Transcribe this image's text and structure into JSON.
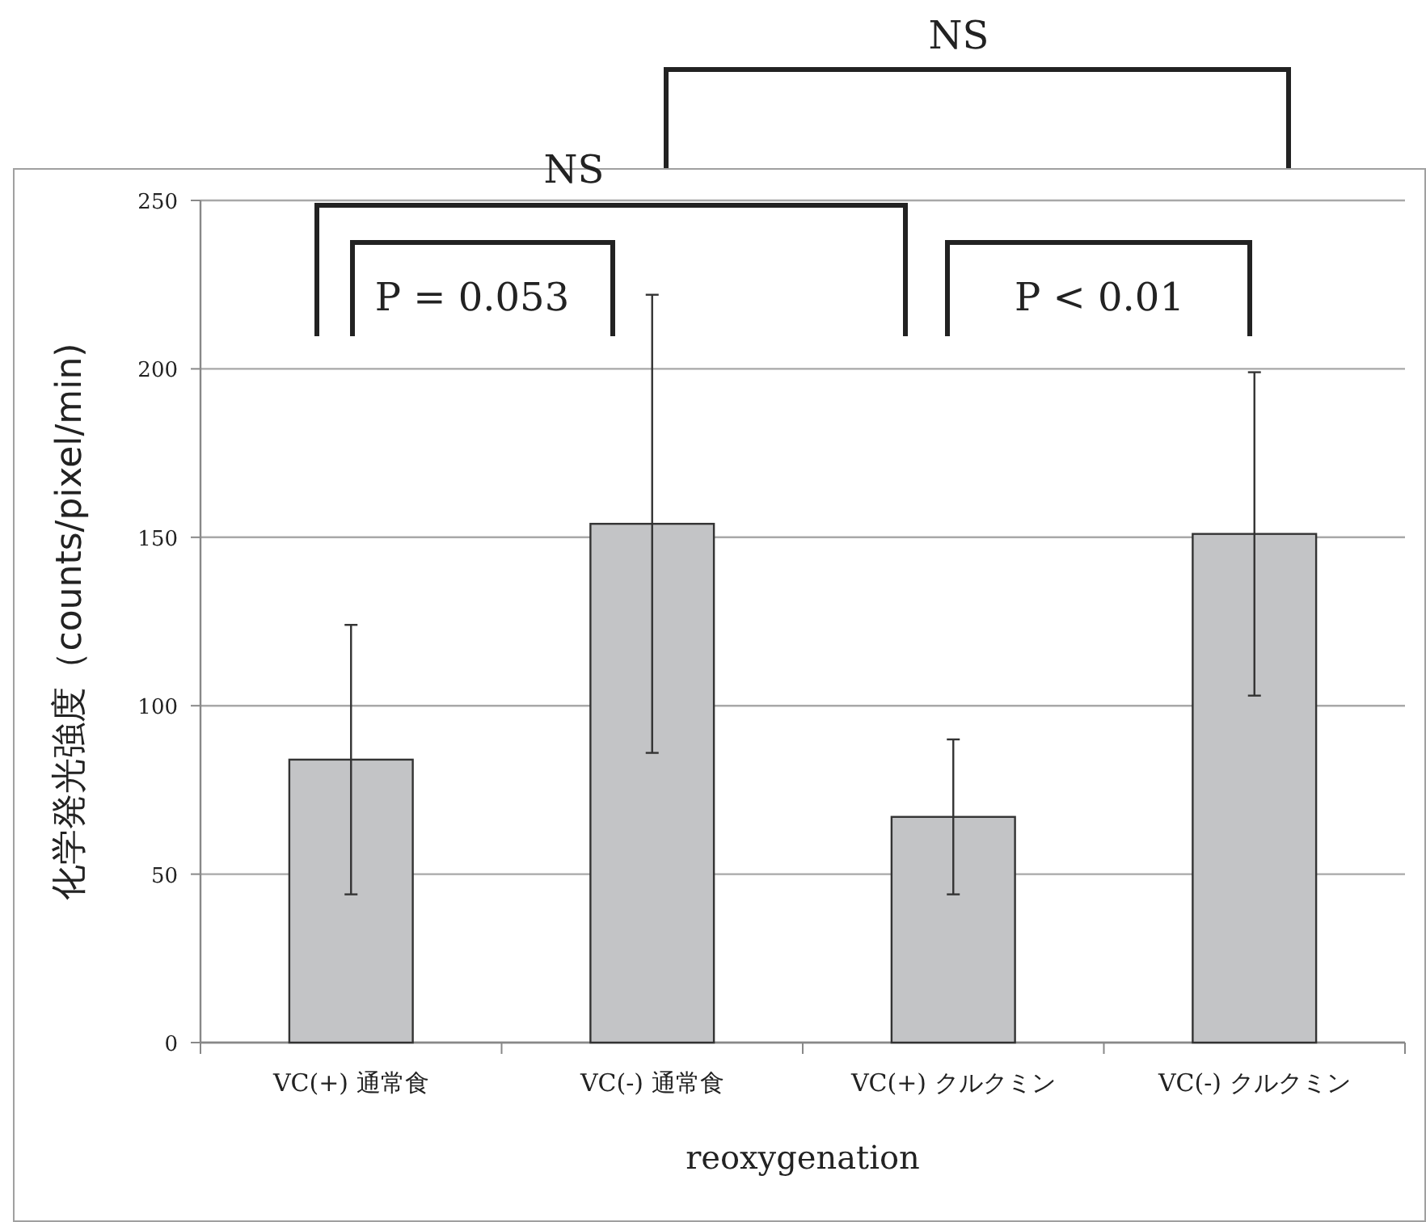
{
  "chart_data": {
    "type": "bar",
    "categories": [
      "VC(+) 通常食",
      "VC(-) 通常食",
      "VC(+) クルクミン",
      "VC(-) クルクミン"
    ],
    "values": [
      84,
      154,
      67,
      151
    ],
    "errors": [
      40,
      68,
      23,
      48
    ],
    "color": "#c3c4c6",
    "xlabel": "reoxygenation",
    "ylabel": "化学発光強度（counts/pixel/min)",
    "ylim": [
      0,
      250
    ],
    "yticks": [
      0,
      50,
      100,
      150,
      200,
      250
    ],
    "grid": "y",
    "annotations": [
      "NS",
      "P = 0.053",
      "P < 0.01",
      "NS"
    ]
  }
}
